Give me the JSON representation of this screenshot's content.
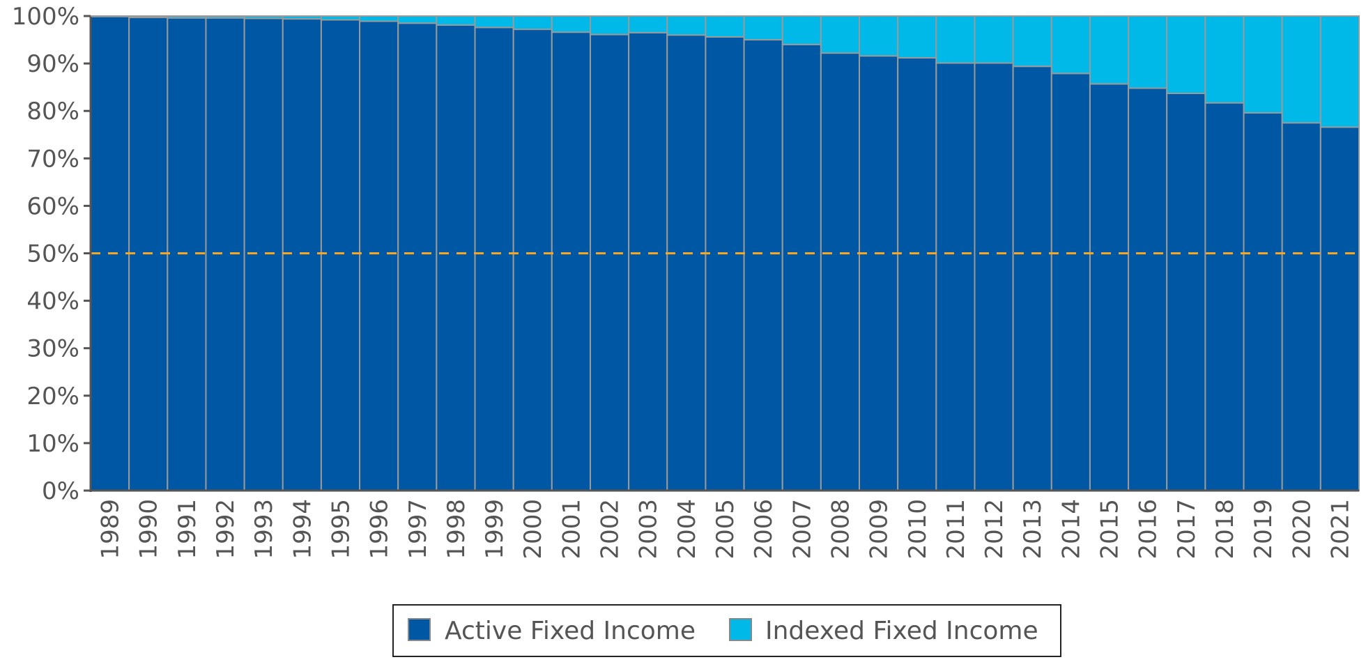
{
  "chart_data": {
    "type": "bar",
    "stacked": true,
    "categories": [
      "1989",
      "1990",
      "1991",
      "1992",
      "1993",
      "1994",
      "1995",
      "1996",
      "1997",
      "1998",
      "1999",
      "2000",
      "2001",
      "2002",
      "2003",
      "2004",
      "2005",
      "2006",
      "2007",
      "2008",
      "2009",
      "2010",
      "2011",
      "2012",
      "2013",
      "2014",
      "2015",
      "2016",
      "2017",
      "2018",
      "2019",
      "2020",
      "2021"
    ],
    "series": [
      {
        "name": "Active Fixed Income",
        "color": "#0057a3",
        "values": [
          99.9,
          99.7,
          99.6,
          99.6,
          99.5,
          99.4,
          99.2,
          98.9,
          98.5,
          98.1,
          97.6,
          97.2,
          96.6,
          96.1,
          96.5,
          96.0,
          95.6,
          95.0,
          94.0,
          92.2,
          91.6,
          91.2,
          90.1,
          90.1,
          89.4,
          87.9,
          85.7,
          84.8,
          83.7,
          81.7,
          79.6,
          77.5,
          76.6
        ]
      },
      {
        "name": "Indexed Fixed Income",
        "color": "#00b9e8",
        "values": [
          0.1,
          0.3,
          0.4,
          0.4,
          0.5,
          0.6,
          0.8,
          1.1,
          1.5,
          1.9,
          2.4,
          2.8,
          3.4,
          3.9,
          3.5,
          4.0,
          4.4,
          5.0,
          6.0,
          7.8,
          8.4,
          8.8,
          9.9,
          9.9,
          10.6,
          12.1,
          14.3,
          15.2,
          16.3,
          18.3,
          20.4,
          22.5,
          23.4
        ]
      }
    ],
    "y_ticks": [
      "0%",
      "10%",
      "20%",
      "30%",
      "40%",
      "50%",
      "60%",
      "70%",
      "80%",
      "90%",
      "100%"
    ],
    "ylim": [
      0,
      100
    ],
    "reference_line": {
      "value": 50,
      "color": "#f5a623",
      "style": "dashed"
    },
    "legend_position": "bottom-center",
    "title": "",
    "xlabel": "",
    "ylabel": ""
  },
  "legend": {
    "items": [
      {
        "label": "Active Fixed Income",
        "color": "#0057a3"
      },
      {
        "label": "Indexed Fixed Income",
        "color": "#00b9e8"
      }
    ]
  }
}
